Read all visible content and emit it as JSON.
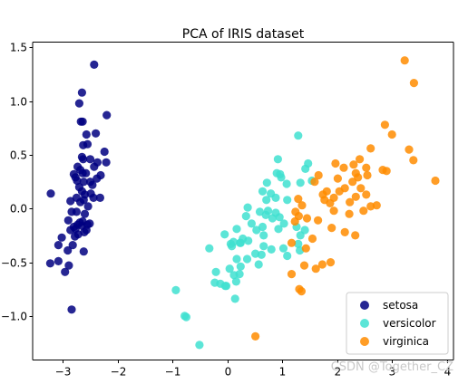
{
  "watermark": "CSDN @Together_CZ",
  "chart_data": {
    "type": "scatter",
    "title": "PCA of IRIS dataset",
    "xlabel": "",
    "ylabel": "",
    "xlim": [
      -3.55,
      4.12
    ],
    "ylim": [
      -1.41,
      1.55
    ],
    "xticks": [
      -3,
      -2,
      -1,
      0,
      1,
      2,
      3,
      4
    ],
    "xtick_labels": [
      "−3",
      "−2",
      "−1",
      "0",
      "1",
      "2",
      "3",
      "4"
    ],
    "yticks": [
      -1.0,
      -0.5,
      0.0,
      0.5,
      1.0,
      1.5
    ],
    "ytick_labels": [
      "−1.0",
      "−0.5",
      "0.0",
      "0.5",
      "1.0",
      "1.5"
    ],
    "grid": false,
    "legend_position": "lower-right",
    "series": [
      {
        "name": "setosa",
        "color": "#000080",
        "points": [
          [
            -2.43,
            1.34
          ],
          [
            -2.65,
            1.08
          ],
          [
            -2.7,
            0.98
          ],
          [
            -2.64,
            0.81
          ],
          [
            -2.67,
            0.81
          ],
          [
            -2.2,
            0.87
          ],
          [
            -2.57,
            0.69
          ],
          [
            -2.4,
            0.7
          ],
          [
            -2.63,
            0.59
          ],
          [
            -2.55,
            0.6
          ],
          [
            -2.24,
            0.53
          ],
          [
            -2.65,
            0.48
          ],
          [
            -2.63,
            0.46
          ],
          [
            -2.5,
            0.46
          ],
          [
            -2.21,
            0.43
          ],
          [
            -2.37,
            0.43
          ],
          [
            -2.43,
            0.39
          ],
          [
            -2.73,
            0.39
          ],
          [
            -2.68,
            0.36
          ],
          [
            -2.64,
            0.33
          ],
          [
            -2.58,
            0.33
          ],
          [
            -2.8,
            0.32
          ],
          [
            -2.31,
            0.31
          ],
          [
            -2.77,
            0.29
          ],
          [
            -2.74,
            0.26
          ],
          [
            -2.38,
            0.28
          ],
          [
            -2.5,
            0.25
          ],
          [
            -2.62,
            0.25
          ],
          [
            -2.46,
            0.22
          ],
          [
            -2.7,
            0.2
          ],
          [
            -2.65,
            0.16
          ],
          [
            -2.49,
            0.14
          ],
          [
            -2.6,
            0.13
          ],
          [
            -2.44,
            0.1
          ],
          [
            -2.75,
            0.1
          ],
          [
            -2.32,
            0.1
          ],
          [
            -2.62,
            0.08
          ],
          [
            -2.68,
            0.06
          ],
          [
            -3.22,
            0.14
          ],
          [
            -2.86,
            0.07
          ],
          [
            -2.54,
            0.02
          ],
          [
            -2.75,
            -0.03
          ],
          [
            -2.84,
            -0.03
          ],
          [
            -2.6,
            -0.05
          ],
          [
            -2.9,
            -0.11
          ],
          [
            -2.64,
            -0.12
          ],
          [
            -2.69,
            -0.13
          ],
          [
            -2.51,
            -0.14
          ],
          [
            -2.55,
            -0.15
          ],
          [
            -2.73,
            -0.15
          ],
          [
            -2.65,
            -0.16
          ],
          [
            -2.8,
            -0.17
          ],
          [
            -2.77,
            -0.19
          ],
          [
            -2.57,
            -0.2
          ],
          [
            -2.86,
            -0.2
          ],
          [
            -2.61,
            -0.22
          ],
          [
            -2.72,
            -0.24
          ],
          [
            -2.78,
            -0.26
          ],
          [
            -3.02,
            -0.27
          ],
          [
            -3.08,
            -0.34
          ],
          [
            -2.82,
            -0.34
          ],
          [
            -2.91,
            -0.39
          ],
          [
            -2.62,
            -0.4
          ],
          [
            -3.08,
            -0.49
          ],
          [
            -3.23,
            -0.51
          ],
          [
            -2.89,
            -0.53
          ],
          [
            -2.96,
            -0.59
          ],
          [
            -2.84,
            -0.94
          ]
        ]
      },
      {
        "name": "versicolor",
        "color": "#40E0D0",
        "points": [
          [
            1.29,
            0.68
          ],
          [
            0.92,
            0.46
          ],
          [
            0.9,
            0.33
          ],
          [
            0.96,
            0.32
          ],
          [
            1.47,
            0.42
          ],
          [
            0.98,
            0.29
          ],
          [
            1.08,
            0.23
          ],
          [
            1.33,
            0.24
          ],
          [
            0.72,
            0.24
          ],
          [
            1.42,
            0.37
          ],
          [
            1.54,
            0.26
          ],
          [
            0.79,
            0.14
          ],
          [
            0.64,
            0.16
          ],
          [
            0.71,
            0.08
          ],
          [
            0.88,
            0.1
          ],
          [
            1.09,
            0.08
          ],
          [
            0.74,
            -0.02
          ],
          [
            0.7,
            -0.06
          ],
          [
            0.88,
            -0.04
          ],
          [
            0.37,
            0.01
          ],
          [
            0.59,
            -0.03
          ],
          [
            0.82,
            -0.09
          ],
          [
            0.95,
            -0.08
          ],
          [
            0.34,
            -0.07
          ],
          [
            0.44,
            -0.14
          ],
          [
            1.03,
            -0.14
          ],
          [
            0.64,
            -0.17
          ],
          [
            0.93,
            -0.19
          ],
          [
            0.17,
            -0.19
          ],
          [
            0.53,
            -0.2
          ],
          [
            -0.05,
            -0.24
          ],
          [
            0.66,
            -0.25
          ],
          [
            1.26,
            -0.17
          ],
          [
            1.41,
            -0.2
          ],
          [
            1.33,
            -0.25
          ],
          [
            0.28,
            -0.28
          ],
          [
            0.24,
            -0.32
          ],
          [
            0.11,
            -0.31
          ],
          [
            0.08,
            -0.35
          ],
          [
            0.23,
            -0.32
          ],
          [
            0.38,
            -0.3
          ],
          [
            0.06,
            -0.33
          ],
          [
            -0.33,
            -0.37
          ],
          [
            0.66,
            -0.35
          ],
          [
            1.29,
            -0.33
          ],
          [
            1.32,
            -0.39
          ],
          [
            1.02,
            -0.37
          ],
          [
            0.8,
            -0.38
          ],
          [
            0.51,
            -0.42
          ],
          [
            1.09,
            -0.44
          ],
          [
            0.17,
            -0.47
          ],
          [
            0.36,
            -0.47
          ],
          [
            0.62,
            -0.43
          ],
          [
            0.24,
            -0.54
          ],
          [
            0.57,
            -0.52
          ],
          [
            0.04,
            -0.56
          ],
          [
            0.22,
            -0.61
          ],
          [
            -0.21,
            -0.59
          ],
          [
            0.12,
            -0.62
          ],
          [
            -0.23,
            -0.69
          ],
          [
            -0.13,
            -0.7
          ],
          [
            -0.04,
            -0.72
          ],
          [
            -0.02,
            -0.72
          ],
          [
            0.16,
            -0.68
          ],
          [
            0.14,
            -0.84
          ],
          [
            -0.94,
            -0.76
          ],
          [
            -0.78,
            -1.0
          ],
          [
            -0.75,
            -1.01
          ],
          [
            -0.51,
            -1.27
          ]
        ]
      },
      {
        "name": "virginica",
        "color": "#FF8C00",
        "points": [
          [
            3.23,
            1.38
          ],
          [
            3.4,
            1.17
          ],
          [
            2.87,
            0.78
          ],
          [
            3.0,
            0.69
          ],
          [
            3.31,
            0.55
          ],
          [
            2.61,
            0.56
          ],
          [
            3.39,
            0.45
          ],
          [
            2.41,
            0.46
          ],
          [
            2.3,
            0.41
          ],
          [
            1.97,
            0.42
          ],
          [
            2.12,
            0.38
          ],
          [
            2.53,
            0.38
          ],
          [
            2.34,
            0.33
          ],
          [
            2.83,
            0.36
          ],
          [
            2.9,
            0.35
          ],
          [
            2.55,
            0.31
          ],
          [
            2.38,
            0.29
          ],
          [
            1.66,
            0.31
          ],
          [
            2.28,
            0.25
          ],
          [
            2.01,
            0.28
          ],
          [
            2.14,
            0.19
          ],
          [
            2.43,
            0.19
          ],
          [
            1.59,
            0.25
          ],
          [
            2.04,
            0.16
          ],
          [
            1.81,
            0.16
          ],
          [
            1.74,
            0.13
          ],
          [
            2.34,
            0.11
          ],
          [
            2.53,
            0.13
          ],
          [
            1.94,
            0.1
          ],
          [
            2.23,
            0.06
          ],
          [
            1.77,
            0.08
          ],
          [
            1.87,
            0.05
          ],
          [
            3.79,
            0.26
          ],
          [
            1.29,
            0.09
          ],
          [
            1.36,
            0.03
          ],
          [
            2.61,
            0.02
          ],
          [
            2.72,
            0.03
          ],
          [
            2.48,
            -0.02
          ],
          [
            1.94,
            -0.02
          ],
          [
            1.24,
            -0.03
          ],
          [
            2.22,
            -0.05
          ],
          [
            1.3,
            -0.07
          ],
          [
            1.45,
            -0.09
          ],
          [
            1.65,
            -0.11
          ],
          [
            1.23,
            -0.12
          ],
          [
            1.9,
            -0.18
          ],
          [
            2.14,
            -0.22
          ],
          [
            2.33,
            -0.25
          ],
          [
            1.55,
            -0.28
          ],
          [
            1.17,
            -0.32
          ],
          [
            1.43,
            -0.37
          ],
          [
            1.88,
            -0.5
          ],
          [
            1.73,
            -0.52
          ],
          [
            1.4,
            -0.53
          ],
          [
            1.61,
            -0.56
          ],
          [
            1.17,
            -0.61
          ],
          [
            1.31,
            -0.75
          ],
          [
            1.35,
            -0.77
          ],
          [
            0.51,
            -1.19
          ]
        ]
      }
    ]
  }
}
